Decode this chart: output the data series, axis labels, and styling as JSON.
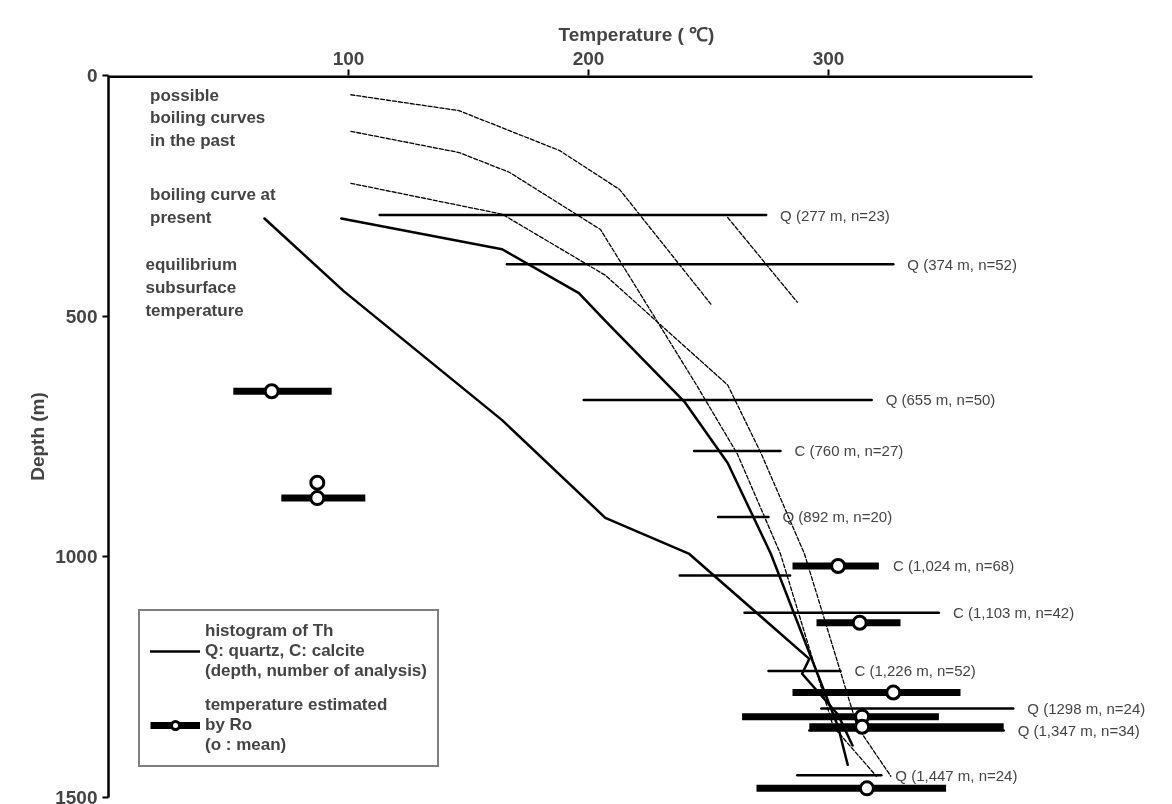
{
  "chart_data": {
    "type": "line",
    "xlabel": "Temperature ( ℃)",
    "ylabel": "Depth (m)",
    "xlim": [
      0,
      385
    ],
    "xticks": [
      100,
      200,
      300
    ],
    "ylim": [
      1500,
      0
    ],
    "yticks": [
      0,
      500,
      1000,
      1500
    ],
    "grid": false,
    "legend": "bottom left",
    "series": [
      {
        "color": "#000000",
        "line_style": "solid",
        "x": [
          97,
          164,
          196,
          207,
          240,
          258,
          276,
          304,
          308
        ],
        "values": [
          297,
          361,
          452,
          510,
          678,
          805,
          994,
          1353,
          1432
        ]
      },
      {
        "color": "#000000",
        "line_style": "solid",
        "x": [
          65,
          98,
          164,
          207,
          242,
          292,
          289,
          304,
          310
        ],
        "values": [
          297,
          448,
          716,
          919,
          994,
          1212,
          1243,
          1328,
          1392
        ]
      },
      {
        "color": "#000000",
        "line_style": "dashed",
        "x": [
          101,
          146,
          188,
          213,
          251
        ],
        "values": [
          40,
          73,
          156,
          237,
          475
        ]
      },
      {
        "color": "#000000",
        "line_style": "dashed",
        "x": [
          258,
          287
        ],
        "values": [
          295,
          471
        ]
      },
      {
        "color": "#000000",
        "line_style": "dashed",
        "x": [
          101,
          146,
          167,
          205,
          245,
          262,
          280,
          302,
          320
        ],
        "values": [
          116,
          160,
          201,
          320,
          643,
          786,
          994,
          1353,
          1456
        ]
      },
      {
        "color": "#000000",
        "line_style": "dashed",
        "x": [
          101,
          164,
          207,
          258,
          272,
          290,
          312,
          326
        ],
        "values": [
          224,
          288,
          415,
          643,
          786,
          994,
          1353,
          1456
        ]
      },
      {
        "type": "line",
        "name": "histogram of Th\nQ: quartz, C: calcite\n(depth, number of analysis)",
        "color": "#000000",
        "line_style": "solid",
        "x": [
          113,
          274
        ],
        "values": [
          290,
          290
        ]
      },
      {
        "type": "line",
        "color": "#000000",
        "line_style": "solid",
        "x": [
          166,
          327
        ],
        "values": [
          392,
          392
        ]
      },
      {
        "type": "line",
        "color": "#000000",
        "line_style": "solid",
        "x": [
          198,
          318
        ],
        "values": [
          674,
          674
        ]
      },
      {
        "type": "line",
        "color": "#000000",
        "line_style": "solid",
        "x": [
          244,
          280
        ],
        "values": [
          780,
          780
        ]
      },
      {
        "type": "line",
        "color": "#000000",
        "line_style": "solid",
        "x": [
          254,
          275
        ],
        "values": [
          917,
          917
        ]
      },
      {
        "type": "line",
        "color": "#000000",
        "line_style": "solid",
        "x": [
          238,
          284
        ],
        "values": [
          1039,
          1039
        ]
      },
      {
        "type": "line",
        "color": "#000000",
        "line_style": "solid",
        "x": [
          265,
          346
        ],
        "values": [
          1116,
          1116
        ]
      },
      {
        "type": "line",
        "color": "#000000",
        "line_style": "solid",
        "x": [
          275,
          305
        ],
        "values": [
          1237,
          1237
        ]
      },
      {
        "type": "line",
        "color": "#000000",
        "line_style": "solid",
        "x": [
          297,
          377
        ],
        "values": [
          1315,
          1315
        ]
      },
      {
        "type": "line",
        "color": "#000000",
        "line_style": "solid",
        "x": [
          292,
          373
        ],
        "values": [
          1361,
          1361
        ]
      },
      {
        "type": "line",
        "color": "#000000",
        "line_style": "solid",
        "x": [
          287,
          322
        ],
        "values": [
          1454,
          1454
        ]
      },
      {
        "type": "scatter",
        "name": "temperature estimated\nby Ro\n(o : mean)",
        "color": "#000000",
        "marker": "circle",
        "x": [
          68,
          87,
          87,
          304,
          313,
          327,
          314,
          314,
          316
        ],
        "values": [
          656,
          878,
          846,
          1019,
          1137,
          1282,
          1332,
          1353,
          1481
        ],
        "xerrors": [
          [
            52,
            93
          ],
          [
            72,
            107
          ],
          null,
          [
            285,
            321
          ],
          [
            295,
            330
          ],
          [
            285,
            355
          ],
          [
            264,
            346
          ],
          [
            292,
            373
          ],
          [
            270,
            349
          ]
        ]
      }
    ],
    "annotations": [
      "possible\nboiling curves\nin the past",
      "boiling curve at\npresent",
      "equilibrium\nsubsurface\ntemperature",
      {
        "text": "Q (277 m, n=23)",
        "x": 274,
        "y": 290
      },
      {
        "text": "Q (374 m, n=52)",
        "x": 327,
        "y": 392
      },
      {
        "text": "Q (655 m, n=50)",
        "x": 318,
        "y": 674
      },
      {
        "text": "C (760 m, n=27)",
        "x": 280,
        "y": 780
      },
      {
        "text": "Q (892 m, n=20)",
        "x": 275,
        "y": 917
      },
      {
        "text": "C (1,024 m, n=68)",
        "x": 321,
        "y": 1019
      },
      {
        "text": "C (1,103 m, n=42)",
        "x": 346,
        "y": 1116
      },
      {
        "text": "C (1,226 m, n=52)",
        "x": 305,
        "y": 1237
      },
      {
        "text": "Q (1298 m, n=24)",
        "x": 377,
        "y": 1315
      },
      {
        "text": "Q (1,347 m, n=34)",
        "x": 373,
        "y": 1361
      },
      {
        "text": "Q (1,447 m, n=24)",
        "x": 322,
        "y": 1454
      }
    ]
  }
}
